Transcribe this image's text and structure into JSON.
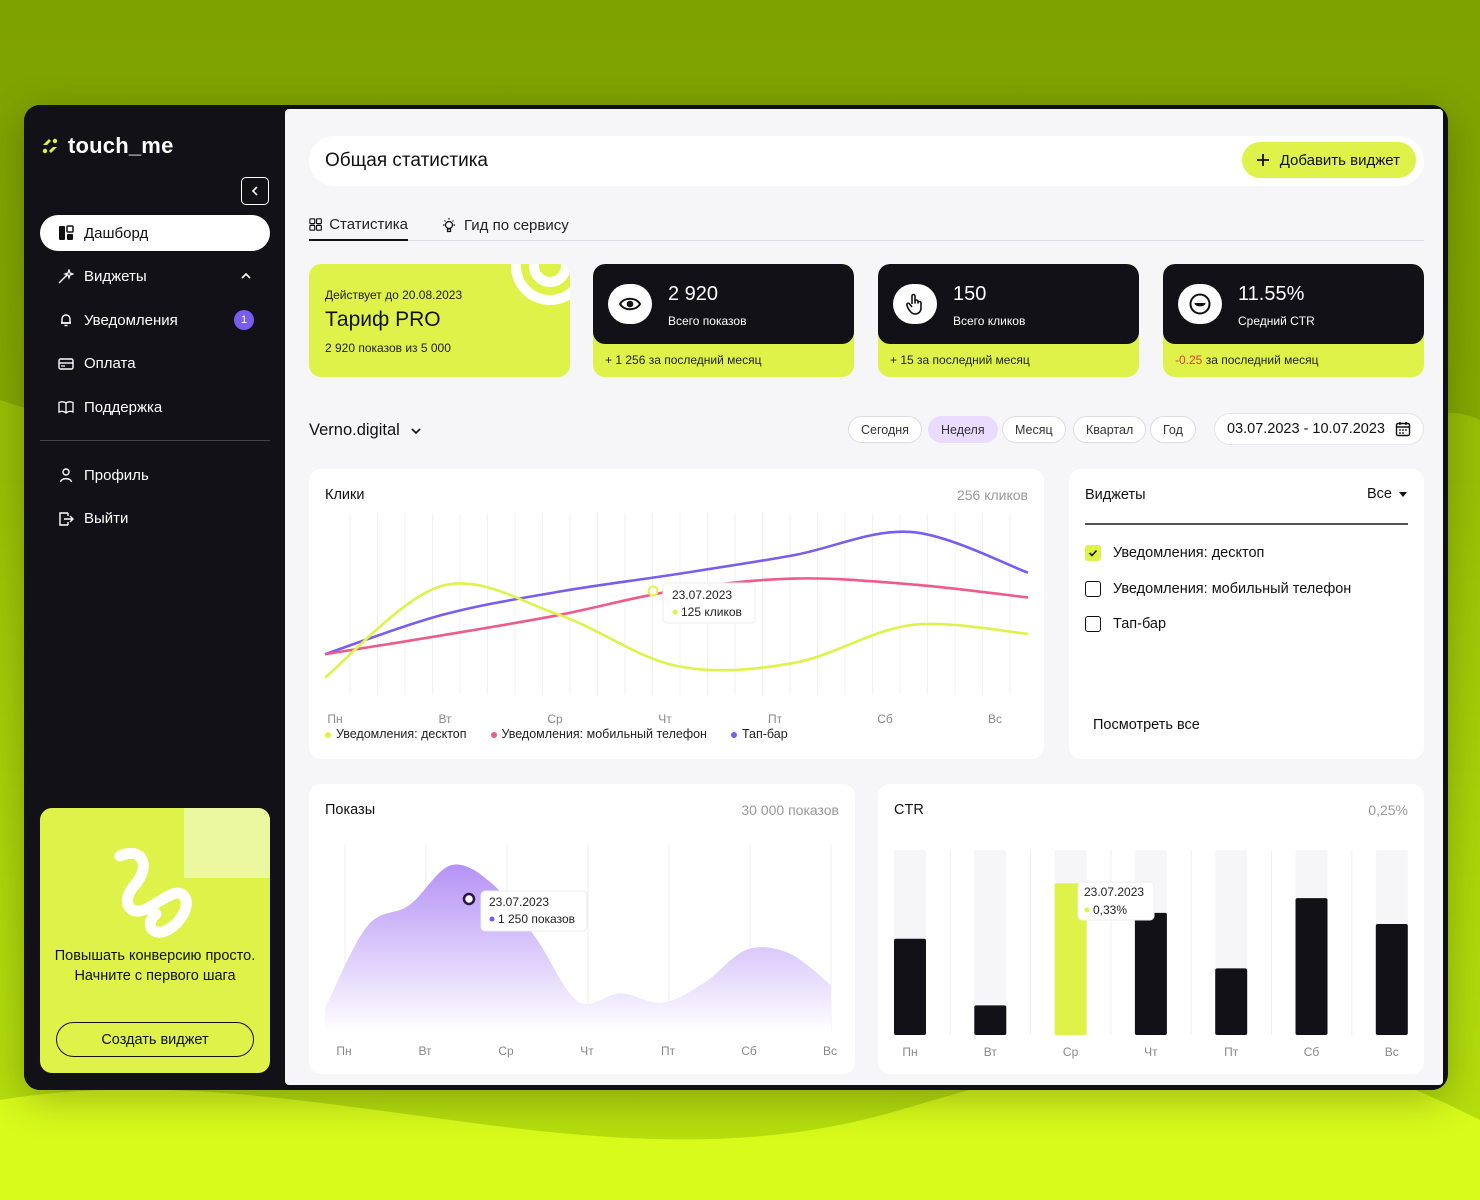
{
  "app": {
    "brand": "touch_me"
  },
  "sidebar": {
    "items": [
      {
        "label": "Дашборд",
        "icon": "dashboard-icon",
        "active": true
      },
      {
        "label": "Виджеты",
        "icon": "sparkles-icon"
      },
      {
        "label": "Уведомления",
        "icon": "bell-icon",
        "badge": "1"
      },
      {
        "label": "Оплата",
        "icon": "card-icon"
      },
      {
        "label": "Поддержка",
        "icon": "book-icon"
      }
    ],
    "items2": [
      {
        "label": "Профиль",
        "icon": "user-icon"
      },
      {
        "label": "Выйти",
        "icon": "logout-icon"
      }
    ],
    "promo": {
      "text": "Повышать конверсию просто. Начните с первого шага",
      "button": "Создать виджет"
    }
  },
  "header": {
    "title": "Общая статистика",
    "add_button": "Добавить виджет"
  },
  "tabs": [
    {
      "label": "Статистика",
      "active": true
    },
    {
      "label": "Гид по сервису"
    }
  ],
  "tarif": {
    "valid_until": "Действует до 20.08.2023",
    "name": "Тариф PRO",
    "usage": "2 920 показов из 5 000"
  },
  "kpis": [
    {
      "value": "2 920",
      "label": "Всего показов",
      "delta": "+ 1 256",
      "delta_text": " за последний месяц",
      "icon": "eye-icon"
    },
    {
      "value": "150",
      "label": "Всего кликов",
      "delta": "+ 15",
      "delta_text": " за последний месяц",
      "icon": "hand-pointer-icon"
    },
    {
      "value": "11.55%",
      "label": "Средний CTR",
      "delta": "-0.25",
      "delta_text": " за последний месяц",
      "icon": "smile-icon",
      "negative": true
    }
  ],
  "filters": {
    "company": "Verno.digital",
    "periods": [
      "Сегодня",
      "Неделя",
      "Месяц",
      "Квартал",
      "Год"
    ],
    "active_period": "Неделя",
    "date_range": "03.07.2023 - 10.07.2023"
  },
  "colors": {
    "lime": "#dff24a",
    "pink": "#ef5a8c",
    "purple": "#7b5cf0",
    "dark": "#111117"
  },
  "clicks_panel": {
    "title": "Клики",
    "total": "256 кликов",
    "tooltip": {
      "date": "23.07.2023",
      "value": "125 кликов"
    },
    "legend": [
      "Уведомления: десктоп",
      "Уведомления: мобильный телефон",
      "Тап-бар"
    ]
  },
  "widgets_panel": {
    "title": "Виджеты",
    "select": "Все",
    "options": [
      {
        "label": "Уведомления: десктоп",
        "checked": true
      },
      {
        "label": "Уведомления: мобильный телефон",
        "checked": false
      },
      {
        "label": "Тап-бар",
        "checked": false
      }
    ],
    "see_all": "Посмотреть все"
  },
  "impressions_panel": {
    "title": "Показы",
    "total": "30 000 показов",
    "tooltip": {
      "date": "23.07.2023",
      "value": "1 250 показов"
    }
  },
  "ctr_panel": {
    "title": "CTR",
    "total": "0,25%",
    "tooltip": {
      "date": "23.07.2023",
      "value": "0,33%"
    }
  },
  "chart_data": [
    {
      "type": "line",
      "title": "Клики",
      "categories": [
        "Пн",
        "Вт",
        "Ср",
        "Чт",
        "Пт",
        "Сб",
        "Вс"
      ],
      "series": [
        {
          "name": "Уведомления: десктоп",
          "color": "#dff24a",
          "values": [
            12,
            75,
            55,
            20,
            22,
            48,
            42
          ]
        },
        {
          "name": "Уведомления: мобильный телефон",
          "color": "#ef5a8c",
          "values": [
            28,
            41,
            55,
            72,
            80,
            76,
            67
          ]
        },
        {
          "name": "Тап-бар",
          "color": "#7b5cf0",
          "values": [
            28,
            55,
            71,
            83,
            96,
            112,
            84
          ]
        }
      ],
      "ylim": [
        0,
        125
      ]
    },
    {
      "type": "area",
      "title": "Показы",
      "categories": [
        "Пн",
        "Вт",
        "Ср",
        "Чт",
        "Пт",
        "Сб",
        "Вс"
      ],
      "x": [
        0,
        0.5,
        1,
        1.5,
        2,
        2.5,
        3,
        3.5,
        4,
        4.5,
        5,
        5.5,
        6
      ],
      "values": [
        200,
        900,
        1080,
        1420,
        1250,
        800,
        260,
        330,
        250,
        420,
        700,
        670,
        400
      ],
      "ylim": [
        0,
        1600
      ]
    },
    {
      "type": "bar",
      "title": "CTR",
      "categories": [
        "Пн",
        "Вт",
        "Ср",
        "Чт",
        "Пт",
        "Сб",
        "Вс"
      ],
      "values": [
        0.26,
        0.08,
        0.41,
        0.33,
        0.18,
        0.37,
        0.3
      ],
      "ylim": [
        0,
        0.5
      ],
      "highlight_index": 2
    }
  ]
}
